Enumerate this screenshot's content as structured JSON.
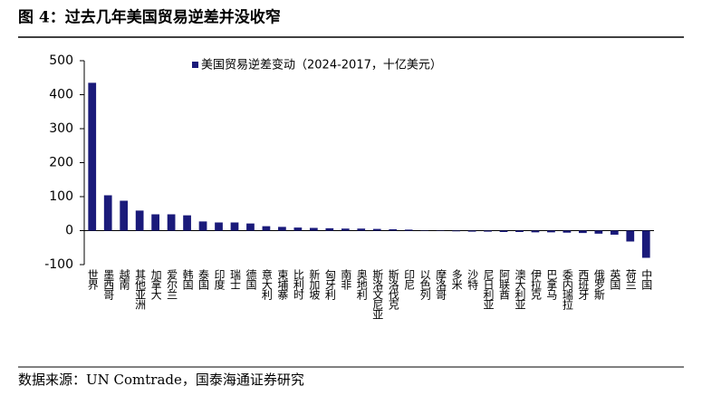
{
  "title": "图 4：过去几年美国贸易逆差并没收窄",
  "source": "数据来源：UN Comtrade，国泰海通证券研究",
  "chart_data": {
    "type": "bar",
    "categories": [
      "世界",
      "墨西哥",
      "越南",
      "其他亚洲",
      "加拿大",
      "爱尔兰",
      "韩国",
      "泰国",
      "印度",
      "瑞士",
      "德国",
      "意大利",
      "柬埔寨",
      "比利时",
      "新加坡",
      "匈牙利",
      "南非",
      "奥地利",
      "斯洛文尼亚",
      "斯洛伐克",
      "印尼",
      "以色列",
      "摩洛哥",
      "多米",
      "沙特",
      "尼日利亚",
      "阿联酋",
      "澳大利亚",
      "伊拉克",
      "巴拿马",
      "委内瑞拉",
      "西班牙",
      "俄罗斯",
      "英国",
      "荷兰",
      "中国"
    ],
    "series": [
      {
        "name": "美国贸易逆差变动（2024-2017，十亿美元）",
        "color": "#1a1a7a",
        "values": [
          435,
          104,
          88,
          59,
          48,
          48,
          45,
          27,
          24,
          24,
          21,
          13,
          11,
          9,
          8,
          7,
          6,
          6,
          5,
          4,
          3,
          1,
          -1,
          -2,
          -3,
          -3,
          -4,
          -4,
          -5,
          -5,
          -6,
          -7,
          -9,
          -12,
          -32,
          -80
        ]
      }
    ],
    "ylim": [
      -100,
      500
    ],
    "yticks": [
      -100,
      0,
      100,
      200,
      300,
      400,
      500
    ],
    "legend": "top"
  }
}
